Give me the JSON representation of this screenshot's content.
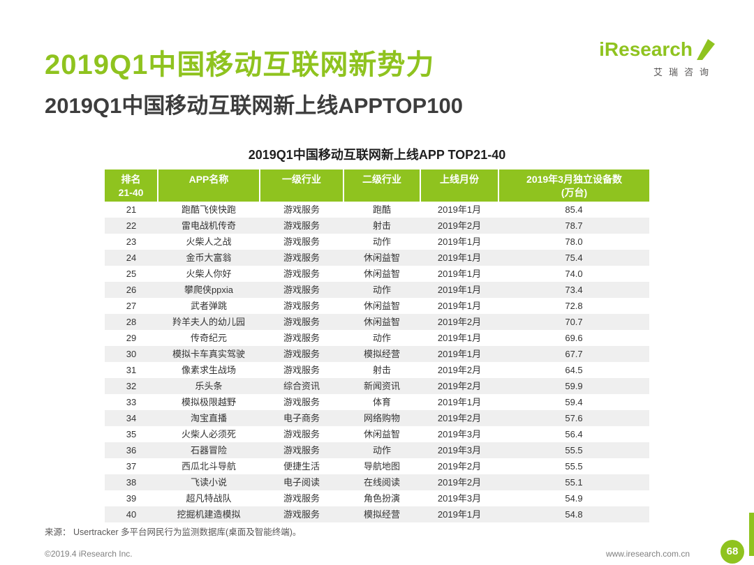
{
  "accent_color": "#8FC31F",
  "header": {
    "title": "2019Q1中国移动互联网新势力",
    "subtitle": "2019Q1中国移动互联网新上线APPTOP100"
  },
  "logo": {
    "brand": "iResearch",
    "brand_cn": "艾瑞咨询"
  },
  "table": {
    "title": "2019Q1中国移动互联网新上线APP TOP21-40",
    "col_keys": [
      "rank",
      "app-name",
      "industry-l1",
      "industry-l2",
      "launch-month",
      "devices"
    ],
    "headers": [
      {
        "line1": "排名",
        "line2": "21-40"
      },
      {
        "line1": "APP名称",
        "line2": ""
      },
      {
        "line1": "一级行业",
        "line2": ""
      },
      {
        "line1": "二级行业",
        "line2": ""
      },
      {
        "line1": "上线月份",
        "line2": ""
      },
      {
        "line1": "2019年3月独立设备数",
        "line2": "(万台)"
      }
    ],
    "rows": [
      [
        "21",
        "跑酷飞侠快跑",
        "游戏服务",
        "跑酷",
        "2019年1月",
        "85.4"
      ],
      [
        "22",
        "雷电战机传奇",
        "游戏服务",
        "射击",
        "2019年2月",
        "78.7"
      ],
      [
        "23",
        "火柴人之战",
        "游戏服务",
        "动作",
        "2019年1月",
        "78.0"
      ],
      [
        "24",
        "金币大富翁",
        "游戏服务",
        "休闲益智",
        "2019年1月",
        "75.4"
      ],
      [
        "25",
        "火柴人你好",
        "游戏服务",
        "休闲益智",
        "2019年1月",
        "74.0"
      ],
      [
        "26",
        "攀爬侠ppxia",
        "游戏服务",
        "动作",
        "2019年1月",
        "73.4"
      ],
      [
        "27",
        "武者弹跳",
        "游戏服务",
        "休闲益智",
        "2019年1月",
        "72.8"
      ],
      [
        "28",
        "羚羊夫人的幼儿园",
        "游戏服务",
        "休闲益智",
        "2019年2月",
        "70.7"
      ],
      [
        "29",
        "传奇纪元",
        "游戏服务",
        "动作",
        "2019年1月",
        "69.6"
      ],
      [
        "30",
        "模拟卡车真实驾驶",
        "游戏服务",
        "模拟经营",
        "2019年1月",
        "67.7"
      ],
      [
        "31",
        "像素求生战场",
        "游戏服务",
        "射击",
        "2019年2月",
        "64.5"
      ],
      [
        "32",
        "乐头条",
        "综合资讯",
        "新闻资讯",
        "2019年2月",
        "59.9"
      ],
      [
        "33",
        "模拟极限越野",
        "游戏服务",
        "体育",
        "2019年1月",
        "59.4"
      ],
      [
        "34",
        "淘宝直播",
        "电子商务",
        "网络购物",
        "2019年2月",
        "57.6"
      ],
      [
        "35",
        "火柴人必须死",
        "游戏服务",
        "休闲益智",
        "2019年3月",
        "56.4"
      ],
      [
        "36",
        "石器冒险",
        "游戏服务",
        "动作",
        "2019年3月",
        "55.5"
      ],
      [
        "37",
        "西瓜北斗导航",
        "便捷生活",
        "导航地图",
        "2019年2月",
        "55.5"
      ],
      [
        "38",
        "飞读小说",
        "电子阅读",
        "在线阅读",
        "2019年2月",
        "55.1"
      ],
      [
        "39",
        "超凡特战队",
        "游戏服务",
        "角色扮演",
        "2019年3月",
        "54.9"
      ],
      [
        "40",
        "挖掘机建造模拟",
        "游戏服务",
        "模拟经营",
        "2019年1月",
        "54.8"
      ]
    ]
  },
  "source": "来源： Usertracker 多平台网民行为监测数据库(桌面及智能终端)。",
  "footer": {
    "copyright": "©2019.4 iResearch Inc.",
    "website": "www.iresearch.com.cn",
    "page_number": "68"
  }
}
